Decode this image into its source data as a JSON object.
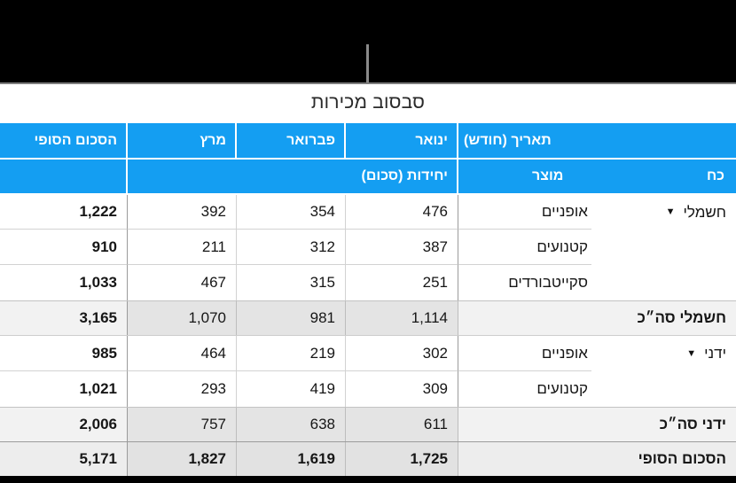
{
  "title": "סבסוב מכירות",
  "icons": {
    "disclosure_triangle": "▼",
    "callout_pointer_line": "vertical-gray-tick"
  },
  "colors": {
    "header_bg": "#149ef2",
    "header_text": "#ffffff",
    "subtotal_month_bg": "#e4e4e4",
    "subtotal_label_bg": "#f2f2f2",
    "grand_month_bg": "#e2e2e2",
    "top_bar": "#000000",
    "pointer_line": "#8a8a8a"
  },
  "header": {
    "date_field": "תאריך (חודש)",
    "months": {
      "jan": "ינואר",
      "feb": "פברואר",
      "mar": "מרץ"
    },
    "final_total": "הסכום הסופי",
    "values_field": "יחידות (סכום)",
    "row_fields": {
      "product": "מוצר",
      "power": "כח"
    }
  },
  "table": {
    "rows": [
      {
        "type": "product",
        "group": "חשמלי",
        "product": "אופניים",
        "jan": "476",
        "feb": "354",
        "mar": "392",
        "total": "1,222"
      },
      {
        "type": "product",
        "group": "",
        "product": "קטנועים",
        "jan": "387",
        "feb": "312",
        "mar": "211",
        "total": "910"
      },
      {
        "type": "product",
        "group": "",
        "product": "סקייטבורדים",
        "jan": "251",
        "feb": "315",
        "mar": "467",
        "total": "1,033"
      },
      {
        "type": "subtotal",
        "label": "חשמלי סה״כ",
        "jan": "1,114",
        "feb": "981",
        "mar": "1,070",
        "total": "3,165"
      },
      {
        "type": "product",
        "group": "ידני",
        "product": "אופניים",
        "jan": "302",
        "feb": "219",
        "mar": "464",
        "total": "985"
      },
      {
        "type": "product",
        "group": "",
        "product": "קטנועים",
        "jan": "309",
        "feb": "419",
        "mar": "293",
        "total": "1,021"
      },
      {
        "type": "subtotal",
        "label": "ידני סה״כ",
        "jan": "611",
        "feb": "638",
        "mar": "757",
        "total": "2,006"
      },
      {
        "type": "grand",
        "label": "הסכום הסופי",
        "jan": "1,725",
        "feb": "1,619",
        "mar": "1,827",
        "total": "5,171"
      }
    ]
  }
}
